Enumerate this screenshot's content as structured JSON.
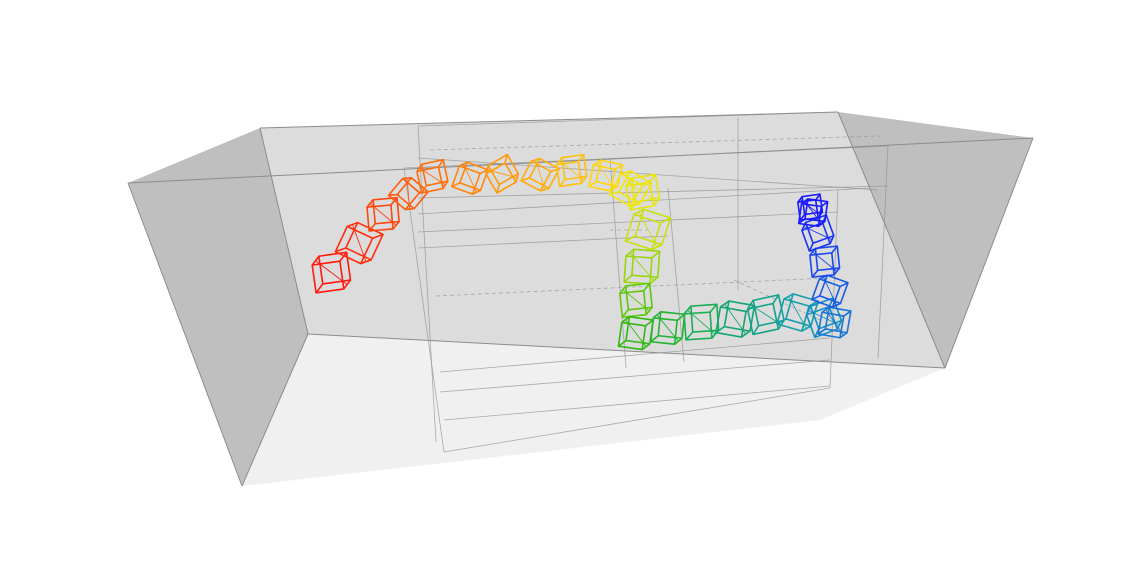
{
  "scene": {
    "kind": "3d-wireframe-cube-path",
    "background": "#ffffff",
    "room": {
      "floor_color": "#f0f0f0",
      "back_wall_color": "#dcdcdc",
      "side_wall_color": "#bfbfbf",
      "edge_color": "#8c8c8c",
      "grid_color": "#909090"
    },
    "path": {
      "segments": [
        {
          "name": "arc-red-to-yellow",
          "colors": [
            "#ff1a0d",
            "#ff2e0d",
            "#ff470d",
            "#ff5c0d",
            "#ff700d",
            "#ff850d",
            "#ff990d",
            "#ffad0d",
            "#ffc10d",
            "#ffd60d",
            "#f2e60d"
          ]
        },
        {
          "name": "descend-yellow-to-green",
          "colors": [
            "#e6e60d",
            "#c9e00d",
            "#99d60d",
            "#5fc70d",
            "#33b814"
          ]
        },
        {
          "name": "run-green-to-teal",
          "colors": [
            "#26b333",
            "#1aad52",
            "#14a670",
            "#14a38c",
            "#149ea8",
            "#1490c2",
            "#1a75d6"
          ]
        },
        {
          "name": "ascend-blue",
          "colors": [
            "#1a5ce6",
            "#1a47f0",
            "#1a33f5",
            "#1a1aff",
            "#1a1aff"
          ]
        }
      ]
    }
  }
}
